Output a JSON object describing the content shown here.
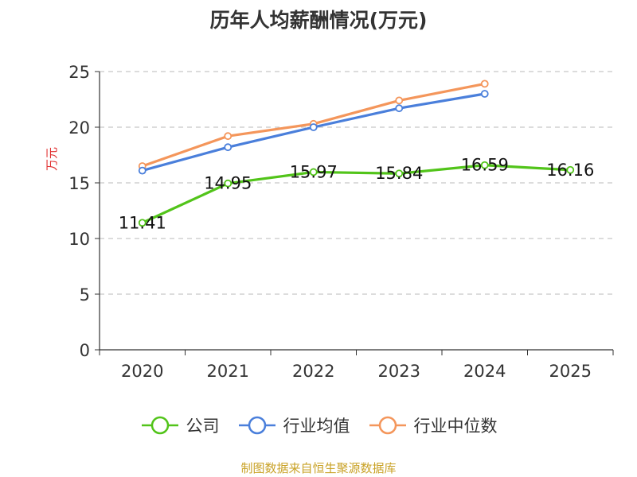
{
  "chart_data": {
    "type": "line",
    "title": "历年人均薪酬情况(万元)",
    "ylabel": "万元",
    "xlabel": "",
    "categories": [
      "2020",
      "2021",
      "2022",
      "2023",
      "2024",
      "2025"
    ],
    "ylim": [
      0,
      25
    ],
    "yticks": [
      0,
      5,
      10,
      15,
      20,
      25
    ],
    "grid": true,
    "legend_position": "bottom",
    "series": [
      {
        "name": "公司",
        "color": "#52c41a",
        "values": [
          11.41,
          14.95,
          15.97,
          15.84,
          16.59,
          16.16
        ],
        "labels": [
          "11.41",
          "14.95",
          "15.97",
          "15.84",
          "16.59",
          "16.16"
        ]
      },
      {
        "name": "行业均值",
        "color": "#4a7fdb",
        "values": [
          16.1,
          18.2,
          20.0,
          21.7,
          23.0,
          null
        ]
      },
      {
        "name": "行业中位数",
        "color": "#f4965b",
        "values": [
          16.5,
          19.2,
          20.3,
          22.4,
          23.9,
          null
        ]
      }
    ]
  },
  "source": "制图数据来自恒生聚源数据库"
}
